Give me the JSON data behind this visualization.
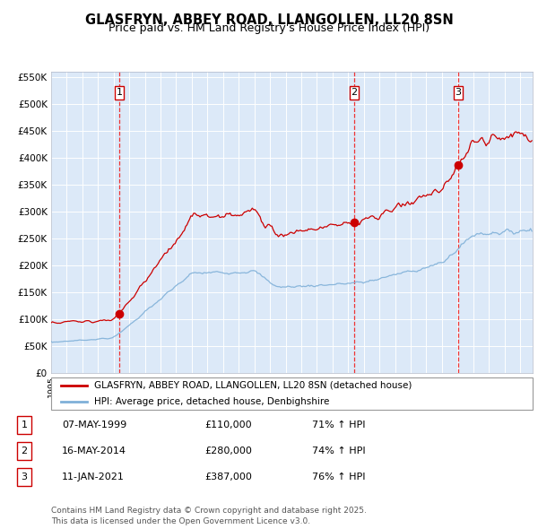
{
  "title": "GLASFRYN, ABBEY ROAD, LLANGOLLEN, LL20 8SN",
  "subtitle": "Price paid vs. HM Land Registry's House Price Index (HPI)",
  "legend_property": "GLASFRYN, ABBEY ROAD, LLANGOLLEN, LL20 8SN (detached house)",
  "legend_hpi": "HPI: Average price, detached house, Denbighshire",
  "footer": "Contains HM Land Registry data © Crown copyright and database right 2025.\nThis data is licensed under the Open Government Licence v3.0.",
  "sales": [
    {
      "num": 1,
      "date": "07-MAY-1999",
      "price": 110000,
      "hpi_pct": "71% ↑ HPI"
    },
    {
      "num": 2,
      "date": "16-MAY-2014",
      "price": 280000,
      "hpi_pct": "74% ↑ HPI"
    },
    {
      "num": 3,
      "date": "11-JAN-2021",
      "price": 387000,
      "hpi_pct": "76% ↑ HPI"
    }
  ],
  "sale_dates_decimal": [
    1999.37,
    2014.37,
    2021.03
  ],
  "sale_prices": [
    110000,
    280000,
    387000
  ],
  "ylim": [
    0,
    560000
  ],
  "yticks": [
    0,
    50000,
    100000,
    150000,
    200000,
    250000,
    300000,
    350000,
    400000,
    450000,
    500000,
    550000
  ],
  "ytick_labels": [
    "£0",
    "£50K",
    "£100K",
    "£150K",
    "£200K",
    "£250K",
    "£300K",
    "£350K",
    "£400K",
    "£450K",
    "£500K",
    "£550K"
  ],
  "xlim_start": 1995.0,
  "xlim_end": 2025.8,
  "background_color": "#dce9f8",
  "grid_color": "#ffffff",
  "red_line_color": "#cc0000",
  "blue_line_color": "#7fb0d8",
  "sale_marker_color": "#cc0000",
  "vline_color": "#ee3333",
  "box_edge_color": "#cc0000",
  "title_color": "#000000",
  "title_fontsize": 10.5,
  "subtitle_fontsize": 9.0
}
